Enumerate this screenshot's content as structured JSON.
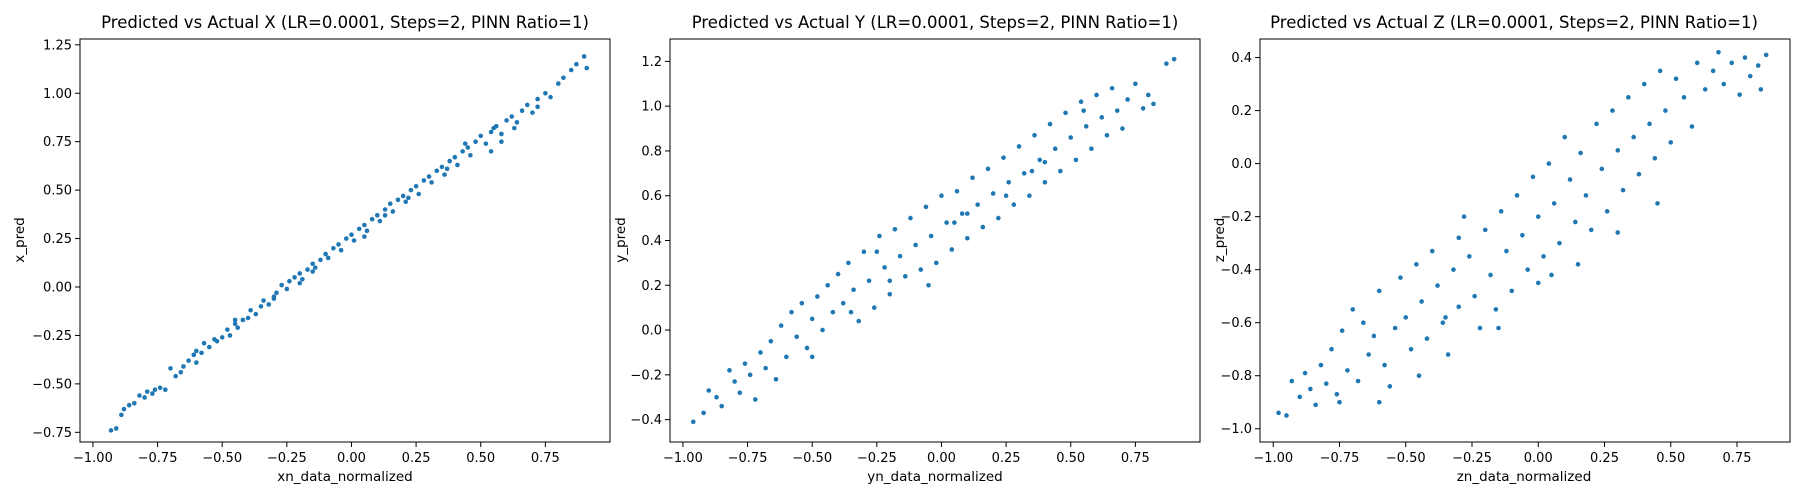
{
  "chart_data": [
    {
      "type": "scatter",
      "title": "Predicted vs Actual X (LR=0.0001, Steps=2, PINN Ratio=1)",
      "xlabel": "xn_data_normalized",
      "ylabel": "x_pred",
      "xlim": [
        -1.05,
        1.0
      ],
      "ylim": [
        -0.8,
        1.28
      ],
      "xticks": [
        -1.0,
        -0.75,
        -0.5,
        -0.25,
        0.0,
        0.25,
        0.5,
        0.75
      ],
      "xtick_labels": [
        "−1.00",
        "−0.75",
        "−0.50",
        "−0.25",
        "0.00",
        "0.25",
        "0.50",
        "0.75"
      ],
      "yticks": [
        -0.75,
        -0.5,
        -0.25,
        0.0,
        0.25,
        0.5,
        0.75,
        1.0,
        1.25
      ],
      "ytick_labels": [
        "−0.75",
        "−0.50",
        "−0.25",
        "0.00",
        "0.25",
        "0.50",
        "0.75",
        "1.00",
        "1.25"
      ],
      "grid": false,
      "marker_color": "#1f77b4",
      "points": [
        [
          -0.93,
          -0.74
        ],
        [
          -0.91,
          -0.73
        ],
        [
          -0.89,
          -0.66
        ],
        [
          -0.88,
          -0.63
        ],
        [
          -0.86,
          -0.61
        ],
        [
          -0.84,
          -0.6
        ],
        [
          -0.82,
          -0.56
        ],
        [
          -0.8,
          -0.57
        ],
        [
          -0.79,
          -0.54
        ],
        [
          -0.77,
          -0.55
        ],
        [
          -0.76,
          -0.53
        ],
        [
          -0.74,
          -0.52
        ],
        [
          -0.72,
          -0.53
        ],
        [
          -0.7,
          -0.42
        ],
        [
          -0.68,
          -0.46
        ],
        [
          -0.66,
          -0.44
        ],
        [
          -0.65,
          -0.41
        ],
        [
          -0.63,
          -0.38
        ],
        [
          -0.61,
          -0.35
        ],
        [
          -0.6,
          -0.33
        ],
        [
          -0.58,
          -0.34
        ],
        [
          -0.57,
          -0.29
        ],
        [
          -0.55,
          -0.31
        ],
        [
          -0.53,
          -0.27
        ],
        [
          -0.52,
          -0.28
        ],
        [
          -0.5,
          -0.26
        ],
        [
          -0.48,
          -0.22
        ],
        [
          -0.47,
          -0.25
        ],
        [
          -0.45,
          -0.19
        ],
        [
          -0.44,
          -0.21
        ],
        [
          -0.42,
          -0.17
        ],
        [
          -0.4,
          -0.16
        ],
        [
          -0.39,
          -0.12
        ],
        [
          -0.37,
          -0.14
        ],
        [
          -0.35,
          -0.1
        ],
        [
          -0.34,
          -0.07
        ],
        [
          -0.32,
          -0.09
        ],
        [
          -0.3,
          -0.05
        ],
        [
          -0.29,
          -0.03
        ],
        [
          -0.27,
          0.01
        ],
        [
          -0.25,
          -0.01
        ],
        [
          -0.24,
          0.03
        ],
        [
          -0.22,
          0.05
        ],
        [
          -0.2,
          0.07
        ],
        [
          -0.19,
          0.04
        ],
        [
          -0.17,
          0.09
        ],
        [
          -0.15,
          0.12
        ],
        [
          -0.14,
          0.1
        ],
        [
          -0.12,
          0.14
        ],
        [
          -0.1,
          0.17
        ],
        [
          -0.09,
          0.15
        ],
        [
          -0.07,
          0.2
        ],
        [
          -0.05,
          0.22
        ],
        [
          -0.04,
          0.19
        ],
        [
          -0.02,
          0.25
        ],
        [
          0.0,
          0.27
        ],
        [
          0.01,
          0.24
        ],
        [
          0.03,
          0.3
        ],
        [
          0.05,
          0.32
        ],
        [
          0.06,
          0.29
        ],
        [
          0.08,
          0.35
        ],
        [
          0.1,
          0.37
        ],
        [
          0.11,
          0.34
        ],
        [
          0.13,
          0.4
        ],
        [
          0.15,
          0.43
        ],
        [
          0.16,
          0.39
        ],
        [
          0.18,
          0.45
        ],
        [
          0.2,
          0.47
        ],
        [
          0.21,
          0.44
        ],
        [
          0.23,
          0.5
        ],
        [
          0.25,
          0.52
        ],
        [
          0.26,
          0.48
        ],
        [
          0.28,
          0.55
        ],
        [
          0.3,
          0.57
        ],
        [
          0.31,
          0.54
        ],
        [
          0.33,
          0.6
        ],
        [
          0.35,
          0.62
        ],
        [
          0.36,
          0.58
        ],
        [
          0.38,
          0.65
        ],
        [
          0.4,
          0.67
        ],
        [
          0.41,
          0.63
        ],
        [
          0.43,
          0.7
        ],
        [
          0.45,
          0.72
        ],
        [
          0.46,
          0.68
        ],
        [
          0.48,
          0.75
        ],
        [
          0.5,
          0.78
        ],
        [
          0.52,
          0.74
        ],
        [
          0.54,
          0.8
        ],
        [
          0.56,
          0.83
        ],
        [
          0.58,
          0.79
        ],
        [
          0.6,
          0.86
        ],
        [
          0.62,
          0.88
        ],
        [
          0.64,
          0.85
        ],
        [
          0.66,
          0.91
        ],
        [
          0.68,
          0.94
        ],
        [
          0.7,
          0.9
        ],
        [
          0.72,
          0.97
        ],
        [
          0.75,
          1.0
        ],
        [
          0.77,
          0.98
        ],
        [
          0.8,
          1.05
        ],
        [
          0.82,
          1.08
        ],
        [
          0.85,
          1.12
        ],
        [
          0.87,
          1.15
        ],
        [
          0.9,
          1.19
        ],
        [
          0.91,
          1.13
        ],
        [
          -0.6,
          -0.39
        ],
        [
          -0.45,
          -0.17
        ],
        [
          -0.3,
          -0.06
        ],
        [
          -0.15,
          0.08
        ],
        [
          0.05,
          0.26
        ],
        [
          0.22,
          0.46
        ],
        [
          0.37,
          0.61
        ],
        [
          0.55,
          0.82
        ],
        [
          0.72,
          0.93
        ],
        [
          -0.2,
          0.02
        ],
        [
          0.13,
          0.37
        ],
        [
          0.44,
          0.74
        ],
        [
          0.63,
          0.82
        ],
        [
          0.58,
          0.75
        ],
        [
          0.54,
          0.7
        ]
      ]
    },
    {
      "type": "scatter",
      "title": "Predicted vs Actual Y (LR=0.0001, Steps=2, PINN Ratio=1)",
      "xlabel": "yn_data_normalized",
      "ylabel": "y_pred",
      "xlim": [
        -1.05,
        1.0
      ],
      "ylim": [
        -0.5,
        1.3
      ],
      "xticks": [
        -1.0,
        -0.75,
        -0.5,
        -0.25,
        0.0,
        0.25,
        0.5,
        0.75
      ],
      "xtick_labels": [
        "−1.00",
        "−0.75",
        "−0.50",
        "−0.25",
        "0.00",
        "0.25",
        "0.50",
        "0.75"
      ],
      "yticks": [
        -0.4,
        -0.2,
        0.0,
        0.2,
        0.4,
        0.6,
        0.8,
        1.0,
        1.2
      ],
      "ytick_labels": [
        "−0.4",
        "−0.2",
        "0.0",
        "0.2",
        "0.4",
        "0.6",
        "0.8",
        "1.0",
        "1.2"
      ],
      "grid": false,
      "marker_color": "#1f77b4",
      "points": [
        [
          -0.96,
          -0.41
        ],
        [
          -0.92,
          -0.37
        ],
        [
          -0.9,
          -0.27
        ],
        [
          -0.87,
          -0.3
        ],
        [
          -0.85,
          -0.34
        ],
        [
          -0.82,
          -0.18
        ],
        [
          -0.8,
          -0.23
        ],
        [
          -0.78,
          -0.28
        ],
        [
          -0.76,
          -0.15
        ],
        [
          -0.74,
          -0.2
        ],
        [
          -0.72,
          -0.31
        ],
        [
          -0.7,
          -0.1
        ],
        [
          -0.68,
          -0.17
        ],
        [
          -0.66,
          -0.05
        ],
        [
          -0.64,
          -0.22
        ],
        [
          -0.62,
          0.02
        ],
        [
          -0.6,
          -0.12
        ],
        [
          -0.58,
          0.08
        ],
        [
          -0.56,
          -0.03
        ],
        [
          -0.54,
          0.12
        ],
        [
          -0.52,
          -0.08
        ],
        [
          -0.5,
          0.05
        ],
        [
          -0.48,
          0.15
        ],
        [
          -0.46,
          0.0
        ],
        [
          -0.44,
          0.2
        ],
        [
          -0.42,
          0.08
        ],
        [
          -0.4,
          0.25
        ],
        [
          -0.38,
          0.12
        ],
        [
          -0.36,
          0.3
        ],
        [
          -0.34,
          0.18
        ],
        [
          -0.32,
          0.04
        ],
        [
          -0.3,
          0.35
        ],
        [
          -0.28,
          0.22
        ],
        [
          -0.26,
          0.1
        ],
        [
          -0.24,
          0.42
        ],
        [
          -0.22,
          0.28
        ],
        [
          -0.2,
          0.16
        ],
        [
          -0.18,
          0.45
        ],
        [
          -0.16,
          0.33
        ],
        [
          -0.14,
          0.24
        ],
        [
          -0.12,
          0.5
        ],
        [
          -0.1,
          0.38
        ],
        [
          -0.08,
          0.27
        ],
        [
          -0.06,
          0.55
        ],
        [
          -0.04,
          0.42
        ],
        [
          -0.02,
          0.3
        ],
        [
          0.0,
          0.6
        ],
        [
          0.02,
          0.48
        ],
        [
          0.04,
          0.36
        ],
        [
          0.06,
          0.62
        ],
        [
          0.08,
          0.52
        ],
        [
          0.1,
          0.41
        ],
        [
          0.12,
          0.68
        ],
        [
          0.14,
          0.56
        ],
        [
          0.16,
          0.46
        ],
        [
          0.18,
          0.72
        ],
        [
          0.2,
          0.61
        ],
        [
          0.22,
          0.5
        ],
        [
          0.24,
          0.77
        ],
        [
          0.26,
          0.66
        ],
        [
          0.28,
          0.56
        ],
        [
          0.3,
          0.82
        ],
        [
          0.32,
          0.7
        ],
        [
          0.34,
          0.6
        ],
        [
          0.36,
          0.87
        ],
        [
          0.38,
          0.76
        ],
        [
          0.4,
          0.66
        ],
        [
          0.42,
          0.92
        ],
        [
          0.44,
          0.81
        ],
        [
          0.46,
          0.71
        ],
        [
          0.48,
          0.97
        ],
        [
          0.5,
          0.86
        ],
        [
          0.52,
          0.76
        ],
        [
          0.54,
          1.02
        ],
        [
          0.56,
          0.91
        ],
        [
          0.58,
          0.81
        ],
        [
          0.6,
          1.05
        ],
        [
          0.62,
          0.95
        ],
        [
          0.64,
          0.87
        ],
        [
          0.66,
          1.08
        ],
        [
          0.68,
          0.98
        ],
        [
          0.7,
          0.9
        ],
        [
          0.72,
          1.03
        ],
        [
          0.75,
          1.1
        ],
        [
          0.78,
          0.99
        ],
        [
          0.8,
          1.05
        ],
        [
          0.82,
          1.01
        ],
        [
          0.87,
          1.19
        ],
        [
          0.9,
          1.21
        ],
        [
          -0.5,
          -0.12
        ],
        [
          -0.35,
          0.08
        ],
        [
          -0.2,
          0.22
        ],
        [
          -0.05,
          0.2
        ],
        [
          0.1,
          0.52
        ],
        [
          0.25,
          0.6
        ],
        [
          0.4,
          0.75
        ],
        [
          0.55,
          0.98
        ],
        [
          -0.25,
          0.35
        ],
        [
          0.05,
          0.48
        ],
        [
          0.35,
          0.71
        ]
      ]
    },
    {
      "type": "scatter",
      "title": "Predicted vs Actual Z (LR=0.0001, Steps=2, PINN Ratio=1)",
      "xlabel": "zn_data_normalized",
      "ylabel": "z_pred",
      "xlim": [
        -1.05,
        0.95
      ],
      "ylim": [
        -1.05,
        0.47
      ],
      "xticks": [
        -1.0,
        -0.75,
        -0.5,
        -0.25,
        0.0,
        0.25,
        0.5,
        0.75
      ],
      "xtick_labels": [
        "−1.00",
        "−0.75",
        "−0.50",
        "−0.25",
        "0.00",
        "0.25",
        "0.50",
        "0.75"
      ],
      "yticks": [
        -1.0,
        -0.8,
        -0.6,
        -0.4,
        -0.2,
        0.0,
        0.2,
        0.4
      ],
      "ytick_labels": [
        "−1.0",
        "−0.8",
        "−0.6",
        "−0.4",
        "−0.2",
        "0.0",
        "0.2",
        "0.4"
      ],
      "grid": false,
      "marker_color": "#1f77b4",
      "points": [
        [
          -0.98,
          -0.94
        ],
        [
          -0.95,
          -0.95
        ],
        [
          -0.93,
          -0.82
        ],
        [
          -0.9,
          -0.88
        ],
        [
          -0.88,
          -0.79
        ],
        [
          -0.86,
          -0.85
        ],
        [
          -0.84,
          -0.91
        ],
        [
          -0.82,
          -0.76
        ],
        [
          -0.8,
          -0.83
        ],
        [
          -0.78,
          -0.7
        ],
        [
          -0.76,
          -0.87
        ],
        [
          -0.74,
          -0.63
        ],
        [
          -0.72,
          -0.78
        ],
        [
          -0.7,
          -0.55
        ],
        [
          -0.68,
          -0.82
        ],
        [
          -0.66,
          -0.6
        ],
        [
          -0.64,
          -0.72
        ],
        [
          -0.62,
          -0.65
        ],
        [
          -0.6,
          -0.9
        ],
        [
          -0.58,
          -0.76
        ],
        [
          -0.56,
          -0.84
        ],
        [
          -0.54,
          -0.62
        ],
        [
          -0.52,
          -0.43
        ],
        [
          -0.5,
          -0.58
        ],
        [
          -0.48,
          -0.7
        ],
        [
          -0.46,
          -0.38
        ],
        [
          -0.44,
          -0.52
        ],
        [
          -0.42,
          -0.66
        ],
        [
          -0.4,
          -0.33
        ],
        [
          -0.38,
          -0.46
        ],
        [
          -0.36,
          -0.6
        ],
        [
          -0.34,
          -0.72
        ],
        [
          -0.32,
          -0.4
        ],
        [
          -0.3,
          -0.54
        ],
        [
          -0.28,
          -0.2
        ],
        [
          -0.26,
          -0.35
        ],
        [
          -0.24,
          -0.5
        ],
        [
          -0.22,
          -0.62
        ],
        [
          -0.2,
          -0.25
        ],
        [
          -0.18,
          -0.42
        ],
        [
          -0.16,
          -0.55
        ],
        [
          -0.14,
          -0.18
        ],
        [
          -0.12,
          -0.33
        ],
        [
          -0.1,
          -0.48
        ],
        [
          -0.08,
          -0.12
        ],
        [
          -0.06,
          -0.27
        ],
        [
          -0.04,
          -0.4
        ],
        [
          -0.02,
          -0.05
        ],
        [
          0.0,
          -0.2
        ],
        [
          0.02,
          -0.35
        ],
        [
          0.04,
          0.0
        ],
        [
          0.06,
          -0.15
        ],
        [
          0.08,
          -0.3
        ],
        [
          0.1,
          0.1
        ],
        [
          0.12,
          -0.06
        ],
        [
          0.14,
          -0.22
        ],
        [
          0.16,
          0.04
        ],
        [
          0.18,
          -0.12
        ],
        [
          0.2,
          -0.25
        ],
        [
          0.22,
          0.15
        ],
        [
          0.24,
          -0.02
        ],
        [
          0.26,
          -0.18
        ],
        [
          0.28,
          0.2
        ],
        [
          0.3,
          0.05
        ],
        [
          0.32,
          -0.1
        ],
        [
          0.34,
          0.25
        ],
        [
          0.36,
          0.1
        ],
        [
          0.38,
          -0.04
        ],
        [
          0.4,
          0.3
        ],
        [
          0.42,
          0.15
        ],
        [
          0.44,
          0.02
        ],
        [
          0.46,
          0.35
        ],
        [
          0.48,
          0.2
        ],
        [
          0.5,
          0.08
        ],
        [
          0.52,
          0.32
        ],
        [
          0.55,
          0.25
        ],
        [
          0.58,
          0.14
        ],
        [
          0.6,
          0.38
        ],
        [
          0.63,
          0.28
        ],
        [
          0.66,
          0.35
        ],
        [
          0.68,
          0.42
        ],
        [
          0.7,
          0.3
        ],
        [
          0.73,
          0.38
        ],
        [
          0.76,
          0.26
        ],
        [
          0.78,
          0.4
        ],
        [
          0.8,
          0.33
        ],
        [
          0.83,
          0.37
        ],
        [
          0.86,
          0.41
        ],
        [
          0.84,
          0.28
        ],
        [
          -0.6,
          -0.48
        ],
        [
          -0.45,
          -0.8
        ],
        [
          -0.3,
          -0.28
        ],
        [
          -0.15,
          -0.62
        ],
        [
          0.0,
          -0.45
        ],
        [
          0.15,
          -0.38
        ],
        [
          0.3,
          -0.26
        ],
        [
          0.45,
          -0.15
        ],
        [
          -0.75,
          -0.9
        ],
        [
          -0.35,
          -0.58
        ],
        [
          0.05,
          -0.42
        ]
      ]
    }
  ]
}
